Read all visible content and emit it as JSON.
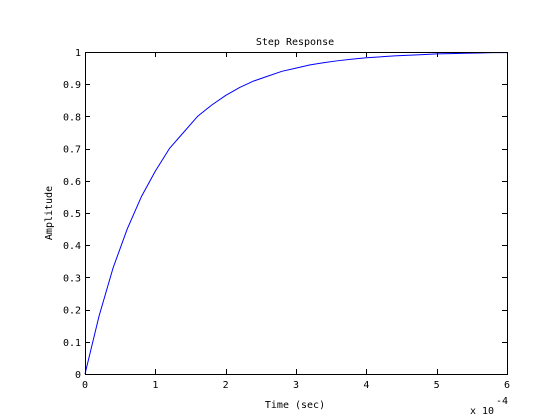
{
  "chart_data": {
    "type": "line",
    "title": "Step Response",
    "xlabel": "Time (sec)",
    "ylabel": "Amplitude",
    "x_multiplier_base": "x 10",
    "x_multiplier_exp": "-4",
    "xlim": [
      0,
      6
    ],
    "ylim": [
      0,
      1
    ],
    "xticks": [
      0,
      1,
      2,
      3,
      4,
      5,
      6
    ],
    "xtick_labels": [
      "0",
      "1",
      "2",
      "3",
      "4",
      "5",
      "6"
    ],
    "yticks": [
      0,
      0.1,
      0.2,
      0.3,
      0.4,
      0.5,
      0.6,
      0.7,
      0.8,
      0.9,
      1
    ],
    "ytick_labels": [
      "0",
      "0.1",
      "0.2",
      "0.3",
      "0.4",
      "0.5",
      "0.6",
      "0.7",
      "0.8",
      "0.9",
      "1"
    ],
    "grid": false,
    "series": [
      {
        "color": "#0000ff",
        "x": [
          0,
          0.2,
          0.4,
          0.6,
          0.8,
          1.0,
          1.2,
          1.4,
          1.6,
          1.8,
          2.0,
          2.2,
          2.4,
          2.6,
          2.8,
          3.0,
          3.2,
          3.4,
          3.6,
          3.8,
          4.0,
          4.2,
          4.4,
          4.6,
          4.8,
          5.0,
          5.2,
          5.4,
          5.6,
          5.8,
          6.0
        ],
        "y": [
          0,
          0.18,
          0.33,
          0.45,
          0.55,
          0.63,
          0.7,
          0.75,
          0.8,
          0.835,
          0.865,
          0.89,
          0.91,
          0.925,
          0.94,
          0.95,
          0.96,
          0.967,
          0.973,
          0.978,
          0.982,
          0.985,
          0.988,
          0.99,
          0.992,
          0.994,
          0.995,
          0.996,
          0.997,
          0.998,
          0.998
        ]
      }
    ]
  }
}
